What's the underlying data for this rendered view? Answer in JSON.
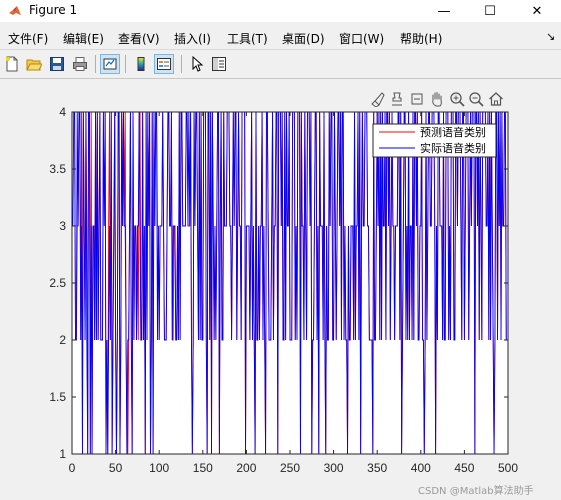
{
  "window": {
    "title": "Figure 1",
    "minimize_glyph": "—",
    "maximize_glyph": "☐",
    "close_glyph": "✕"
  },
  "menu": {
    "items": [
      "文件(F)",
      "编辑(E)",
      "查看(V)",
      "插入(I)",
      "工具(T)",
      "桌面(D)",
      "窗口(W)",
      "帮助(H)"
    ],
    "overflow_glyph": "↘"
  },
  "toolbar": {
    "buttons": [
      "new-figure-icon",
      "open-file-icon",
      "save-icon",
      "print-icon",
      "link-plot-icon",
      "colorbar-icon",
      "legend-icon",
      "pointer-icon",
      "property-inspector-icon"
    ]
  },
  "axes_toolbar": {
    "buttons": [
      "brush-icon",
      "data-tips-icon",
      "pan-icon",
      "zoom-in-icon",
      "zoom-out-icon",
      "home-icon"
    ]
  },
  "colors": {
    "predicted": "#ff0000",
    "actual": "#0000ff",
    "axes_bg": "#ffffff",
    "figure_bg": "#f0f0f0"
  },
  "chart_data": {
    "type": "line",
    "title": "",
    "xlabel": "",
    "ylabel": "",
    "xlim": [
      0,
      500
    ],
    "ylim": [
      1,
      4
    ],
    "xticks": [
      0,
      50,
      100,
      150,
      200,
      250,
      300,
      350,
      400,
      450,
      500
    ],
    "yticks": [
      1,
      1.5,
      2,
      2.5,
      3,
      3.5,
      4
    ],
    "xtick_labels": [
      "0",
      "50",
      "100",
      "150",
      "200",
      "250",
      "300",
      "350",
      "400",
      "450",
      "500"
    ],
    "ytick_labels": [
      "1",
      "1.5",
      "2",
      "2.5",
      "3",
      "3.5",
      "4"
    ],
    "grid": false,
    "legend_position": "top-right",
    "x": "integers 1 to 500",
    "series": [
      {
        "name": "预测语音类别",
        "color": "#ff0000",
        "values": [
          4,
          4,
          4,
          2,
          2,
          3,
          3,
          4,
          4,
          2,
          4,
          1,
          4,
          3,
          2,
          4,
          3,
          1,
          4,
          4,
          1,
          4,
          1,
          3,
          3,
          2,
          4,
          2,
          4,
          2,
          3,
          4,
          2,
          2,
          2,
          4,
          4,
          4,
          1,
          2,
          1,
          3,
          4,
          2,
          4,
          1,
          2,
          3,
          4,
          2,
          1,
          2,
          4,
          4,
          1,
          2,
          4,
          3,
          4,
          3,
          4,
          2,
          1,
          1,
          2,
          3,
          4,
          2,
          1,
          4,
          2,
          3,
          3,
          2,
          3,
          2,
          4,
          4,
          2,
          2,
          4,
          2,
          3,
          1,
          4,
          2,
          4,
          3,
          4,
          1,
          2,
          4,
          1,
          4,
          3,
          4,
          4,
          3,
          3,
          2,
          3,
          3,
          3,
          4,
          3,
          2,
          2,
          2,
          3,
          4,
          4,
          3,
          3,
          4,
          2,
          2,
          3,
          3,
          2,
          2,
          3,
          2,
          4,
          2,
          4,
          4,
          3,
          3,
          3,
          3,
          4,
          4,
          3,
          3,
          3,
          4,
          2,
          1,
          2,
          4,
          3,
          4,
          4,
          3,
          2,
          4,
          2,
          4,
          2,
          2,
          4,
          4,
          4,
          2,
          1,
          4,
          4,
          2,
          4,
          1,
          4,
          3,
          2,
          3,
          2,
          3,
          4,
          4,
          1,
          3,
          4,
          2,
          2,
          4,
          3,
          3,
          3,
          4,
          4,
          4,
          3,
          3,
          2,
          3,
          4,
          3,
          4,
          4,
          2,
          3,
          4,
          3,
          3,
          2,
          4,
          4,
          4,
          4,
          1,
          3,
          3,
          3,
          3,
          2,
          3,
          4,
          2,
          3,
          2,
          1,
          4,
          2,
          2,
          3,
          2,
          3,
          3,
          4,
          2,
          3,
          2,
          1,
          4,
          4,
          3,
          2,
          2,
          2,
          3,
          4,
          2,
          3,
          3,
          4,
          4,
          1,
          4,
          4,
          4,
          3,
          4,
          2,
          2,
          4,
          2,
          4,
          3,
          3,
          4,
          2,
          2,
          2,
          4,
          4,
          4,
          2,
          3,
          2,
          4,
          4,
          4,
          1,
          4,
          3,
          3,
          2,
          4,
          3,
          2,
          4,
          4,
          4,
          3,
          4,
          1,
          2,
          2,
          3,
          4,
          4,
          2,
          3,
          1,
          4,
          3,
          3,
          3,
          2,
          4,
          2,
          1,
          3,
          2,
          2,
          4,
          3,
          4,
          4,
          2,
          2,
          4,
          3,
          2,
          3,
          4,
          4,
          3,
          4,
          2,
          4,
          4,
          2,
          3,
          2,
          2,
          1,
          3,
          2,
          2,
          3,
          3,
          3,
          2,
          4,
          2,
          3,
          3,
          4,
          2,
          4,
          1,
          3,
          4,
          3,
          3,
          4,
          4,
          4,
          3,
          3,
          2,
          2,
          2,
          2,
          1,
          4,
          2,
          2,
          3,
          4,
          3,
          4,
          2,
          4,
          2,
          4,
          3,
          3,
          4,
          2,
          4,
          4,
          3,
          4,
          2,
          3,
          4,
          3,
          3,
          2,
          3,
          3,
          3,
          4,
          4,
          2,
          4,
          1,
          2,
          3,
          4,
          4,
          2,
          3,
          2,
          4,
          2,
          3,
          3,
          2,
          4,
          2,
          4,
          4,
          3,
          4,
          2,
          2,
          3,
          3,
          4,
          2,
          2,
          1,
          2,
          4,
          2,
          3,
          4,
          4,
          3,
          3,
          4,
          4,
          4,
          3,
          1,
          3,
          2,
          4,
          4,
          3,
          3,
          3,
          2,
          4,
          2,
          2,
          4,
          4,
          4,
          2,
          3,
          2,
          4,
          4,
          4,
          2,
          2,
          4,
          4,
          3,
          4,
          4,
          4,
          3,
          2,
          4,
          4,
          2,
          3,
          4,
          4,
          4,
          2,
          3,
          4,
          3,
          4,
          4,
          4,
          1,
          4,
          4,
          3,
          4,
          2,
          4,
          3,
          2,
          4,
          4,
          4,
          4,
          3,
          3,
          4,
          2,
          4,
          2,
          4,
          3,
          2,
          1,
          2,
          4,
          4,
          2,
          4,
          3,
          4,
          2,
          4,
          3,
          3,
          4,
          4,
          2
        ]
      },
      {
        "name": "实际语音类别",
        "color": "#0000ff",
        "values": [
          3,
          4,
          4,
          2,
          2,
          4,
          3,
          4,
          4,
          2,
          3,
          1,
          4,
          3,
          2,
          4,
          2,
          1,
          4,
          4,
          1,
          3,
          1,
          3,
          3,
          2,
          4,
          2,
          4,
          2,
          3,
          4,
          2,
          2,
          2,
          4,
          3,
          4,
          1,
          2,
          1,
          2,
          3,
          2,
          4,
          1,
          2,
          3,
          4,
          2,
          1,
          2,
          4,
          4,
          1,
          2,
          4,
          3,
          4,
          3,
          3,
          2,
          1,
          2,
          2,
          3,
          4,
          2,
          1,
          4,
          2,
          3,
          3,
          2,
          3,
          3,
          4,
          3,
          2,
          2,
          4,
          2,
          3,
          1,
          4,
          2,
          4,
          3,
          4,
          1,
          2,
          4,
          1,
          4,
          3,
          4,
          4,
          2,
          3,
          2,
          3,
          3,
          3,
          4,
          3,
          2,
          2,
          2,
          3,
          4,
          4,
          3,
          3,
          4,
          2,
          3,
          3,
          3,
          2,
          2,
          3,
          2,
          4,
          2,
          4,
          4,
          3,
          3,
          3,
          3,
          4,
          4,
          3,
          4,
          3,
          4,
          2,
          1,
          2,
          4,
          3,
          4,
          4,
          3,
          2,
          4,
          2,
          4,
          2,
          2,
          4,
          4,
          4,
          2,
          1,
          4,
          4,
          2,
          4,
          1,
          4,
          3,
          2,
          3,
          2,
          3,
          4,
          4,
          1,
          3,
          4,
          2,
          2,
          4,
          3,
          3,
          3,
          4,
          4,
          4,
          3,
          3,
          2,
          3,
          4,
          3,
          4,
          4,
          2,
          3,
          4,
          3,
          3,
          2,
          4,
          4,
          4,
          4,
          1,
          3,
          3,
          3,
          3,
          2,
          3,
          4,
          2,
          3,
          2,
          1,
          4,
          2,
          2,
          3,
          2,
          3,
          3,
          4,
          2,
          3,
          2,
          1,
          4,
          4,
          3,
          2,
          2,
          2,
          3,
          4,
          2,
          3,
          3,
          4,
          4,
          1,
          4,
          4,
          4,
          3,
          4,
          2,
          2,
          4,
          2,
          4,
          3,
          3,
          4,
          2,
          2,
          2,
          4,
          4,
          4,
          2,
          3,
          2,
          4,
          4,
          4,
          1,
          4,
          3,
          3,
          2,
          4,
          3,
          2,
          4,
          4,
          4,
          3,
          4,
          1,
          2,
          2,
          3,
          4,
          4,
          2,
          3,
          1,
          4,
          3,
          3,
          3,
          2,
          4,
          2,
          1,
          3,
          2,
          2,
          4,
          3,
          4,
          4,
          2,
          2,
          4,
          3,
          2,
          3,
          4,
          4,
          3,
          4,
          2,
          4,
          4,
          2,
          3,
          2,
          2,
          1,
          3,
          2,
          2,
          3,
          3,
          3,
          2,
          4,
          2,
          3,
          3,
          4,
          2,
          4,
          1,
          3,
          4,
          3,
          3,
          4,
          4,
          4,
          3,
          3,
          2,
          2,
          2,
          2,
          1,
          4,
          2,
          2,
          3,
          4,
          3,
          4,
          2,
          4,
          2,
          4,
          3,
          3,
          4,
          2,
          4,
          4,
          3,
          4,
          2,
          3,
          4,
          3,
          3,
          2,
          3,
          3,
          3,
          4,
          4,
          2,
          4,
          1,
          2,
          3,
          4,
          4,
          2,
          3,
          2,
          4,
          2,
          3,
          3,
          2,
          4,
          2,
          4,
          4,
          3,
          4,
          2,
          2,
          3,
          3,
          4,
          2,
          2,
          1,
          2,
          4,
          2,
          3,
          4,
          4,
          3,
          3,
          4,
          4,
          4,
          3,
          1,
          3,
          2,
          4,
          4,
          3,
          3,
          3,
          2,
          4,
          2,
          2,
          4,
          4,
          4,
          2,
          3,
          2,
          4,
          4,
          4,
          2,
          2,
          4,
          4,
          3,
          4,
          4,
          4,
          3,
          2,
          4,
          4,
          2,
          3,
          4,
          4,
          4,
          2,
          3,
          4,
          3,
          4,
          4,
          4,
          1,
          4,
          4,
          3,
          4,
          2,
          4,
          3,
          2,
          4,
          4,
          4,
          4,
          3,
          3,
          4,
          2,
          4,
          2,
          4,
          3,
          2,
          1,
          2,
          4,
          4,
          2,
          4,
          3,
          4,
          2,
          4,
          3,
          3,
          4,
          4,
          2
        ]
      }
    ]
  },
  "watermark": "CSDN @Matlab算法助手"
}
